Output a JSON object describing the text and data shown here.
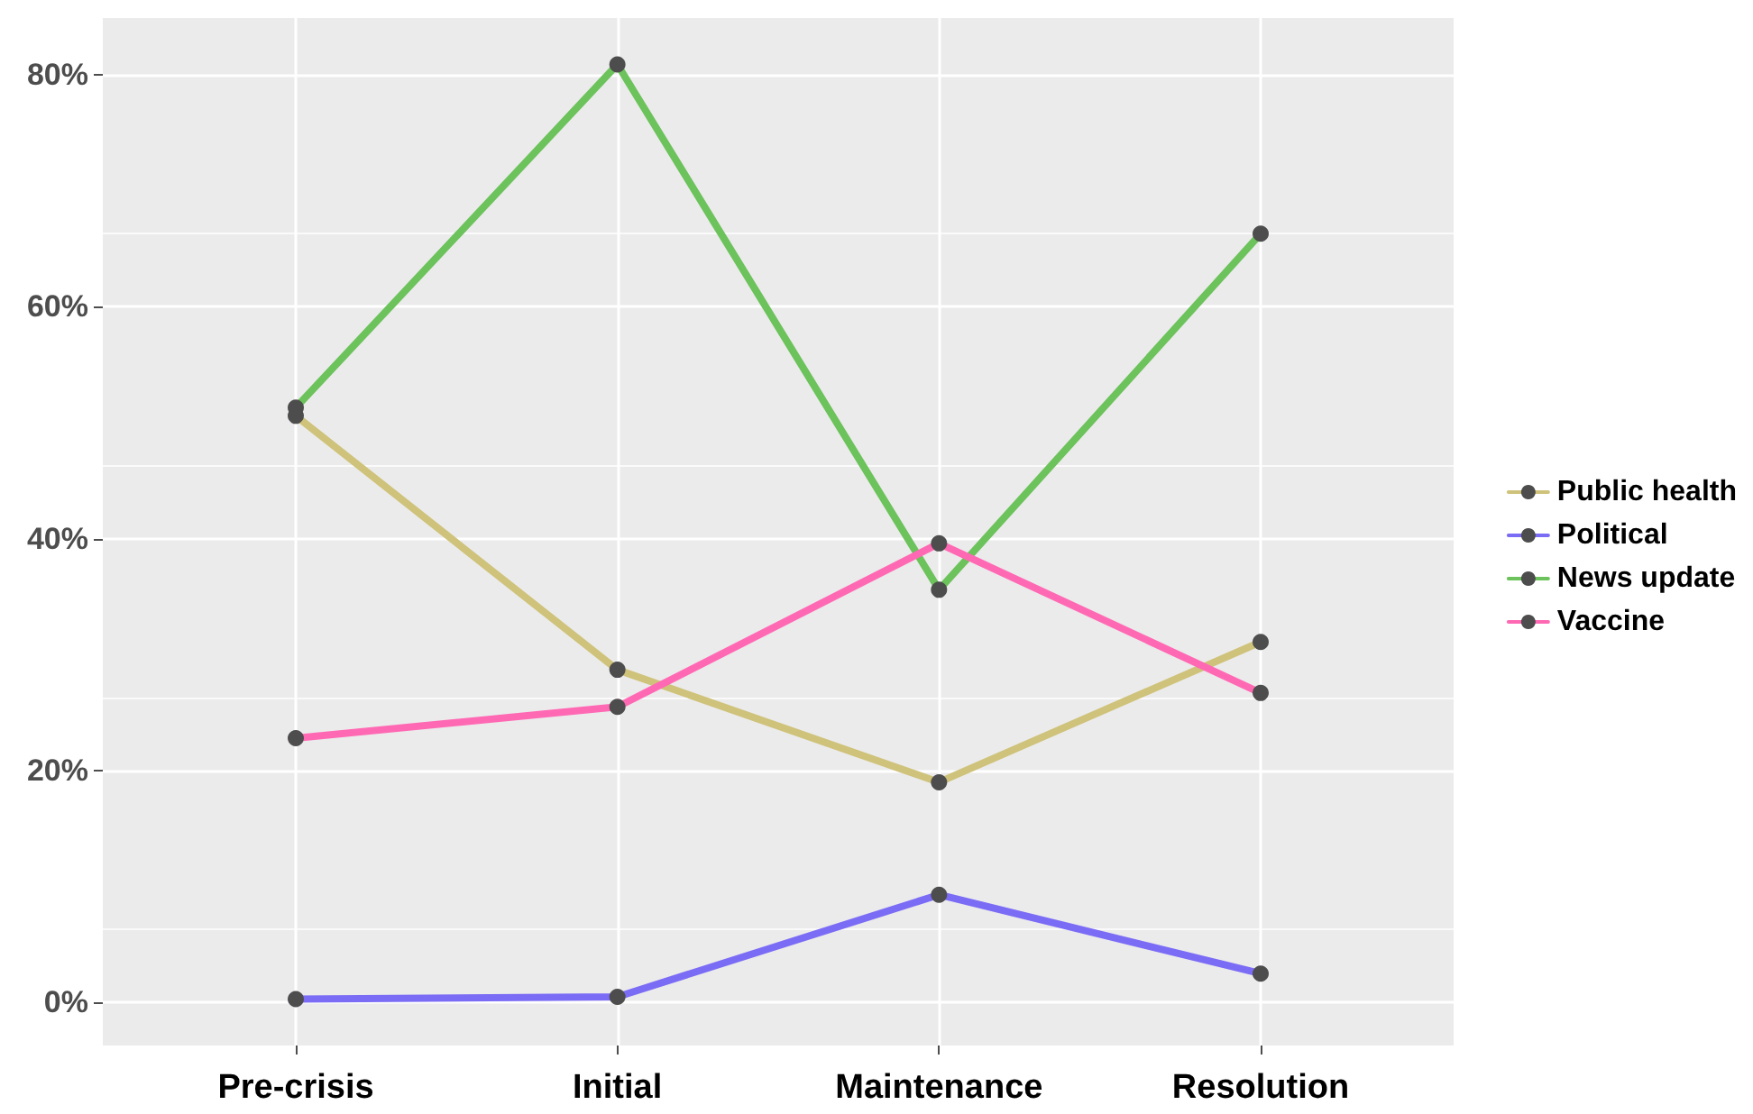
{
  "chart_data": {
    "type": "line",
    "categories": [
      "Pre-crisis",
      "Initial",
      "Maintenance",
      "Resolution"
    ],
    "series": [
      {
        "name": "Public health",
        "color": "#cfc27a",
        "values": [
          50.6,
          28.7,
          19.0,
          31.1
        ]
      },
      {
        "name": "Political",
        "color": "#7b6cf6",
        "values": [
          0.3,
          0.5,
          9.3,
          2.5
        ]
      },
      {
        "name": "News update",
        "color": "#6cc25b",
        "values": [
          51.3,
          80.9,
          35.6,
          66.3
        ]
      },
      {
        "name": "Vaccine",
        "color": "#ff69b4",
        "values": [
          22.8,
          25.5,
          39.6,
          26.7
        ]
      }
    ],
    "ylim": [
      -3.7,
      84.9
    ],
    "yticks": [
      {
        "value": 0,
        "label": "0%"
      },
      {
        "value": 20,
        "label": "20%"
      },
      {
        "value": 40,
        "label": "40%"
      },
      {
        "value": 60,
        "label": "60%"
      },
      {
        "value": 80,
        "label": "80%"
      }
    ],
    "grid": true,
    "legend": "right",
    "marker": "circle",
    "line_style": "solid"
  }
}
